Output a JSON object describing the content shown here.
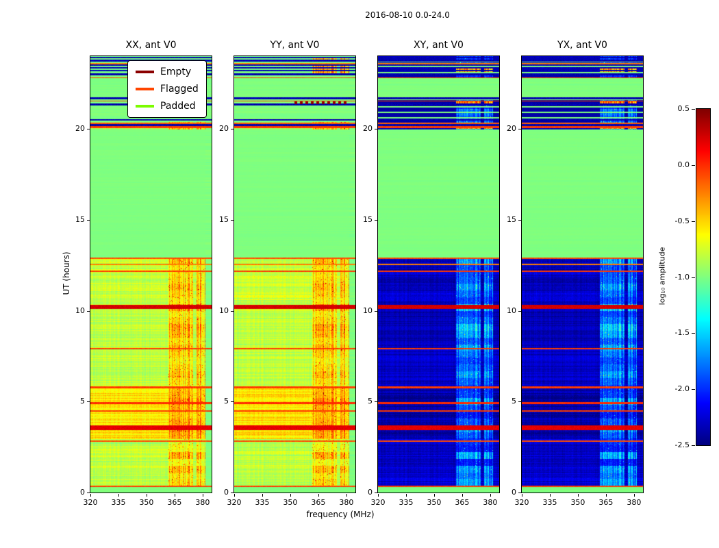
{
  "figure": {
    "title": "2016-08-10 0.0-24.0",
    "xlabel": "frequency (MHz)",
    "ylabel": "UT (hours)",
    "colorbar_label": "log₁₀ amplitude"
  },
  "chart_data": {
    "type": "heatmap",
    "colormap": "jet",
    "panels": [
      {
        "id": "xx",
        "title": "XX, ant V0",
        "kind": "auto"
      },
      {
        "id": "yy",
        "title": "YY, ant V0",
        "kind": "auto"
      },
      {
        "id": "xy",
        "title": "XY, ant V0",
        "kind": "cross"
      },
      {
        "id": "yx",
        "title": "YX, ant V0",
        "kind": "cross"
      }
    ],
    "x_range": [
      320,
      384.8
    ],
    "x_ticks": [
      320,
      335,
      350,
      365,
      380
    ],
    "y_range": [
      0,
      24
    ],
    "y_ticks": [
      0,
      5,
      10,
      15,
      20
    ],
    "colorbar": {
      "range": [
        -2.5,
        0.5
      ],
      "ticks": [
        {
          "label": "0.5",
          "value": 0.5
        },
        {
          "label": "0.0",
          "value": 0.0
        },
        {
          "label": "-0.5",
          "value": -0.5
        },
        {
          "label": "-1.0",
          "value": -1.0
        },
        {
          "label": "-1.5",
          "value": -1.5
        },
        {
          "label": "-2.0",
          "value": -2.0
        },
        {
          "label": "-2.5",
          "value": -2.5
        }
      ]
    },
    "legend": [
      {
        "label": "Empty",
        "color": "#8b0000"
      },
      {
        "label": "Flagged",
        "color": "#ff4500"
      },
      {
        "label": "Padded",
        "color": "#7cfc00"
      }
    ],
    "background_value": -1.0,
    "rfi": {
      "f0": 361.8,
      "f1": 381.4,
      "gap0": 374.9,
      "gap1": 376.9
    },
    "regions": [
      {
        "y0": 0.0,
        "y1": 0.32,
        "auto": -1.0,
        "cross": -1.0,
        "noise": 0.02
      },
      {
        "y0": 0.32,
        "y1": 1.05,
        "auto": -0.85,
        "cross": -2.25,
        "noise": 0.1,
        "rfi_auto": -0.45,
        "rfi_cross": -1.55,
        "rfi_noise": 0.3
      },
      {
        "y0": 1.05,
        "y1": 2.62,
        "auto": -0.8,
        "cross": -2.3,
        "noise": 0.12,
        "rfi_auto": -0.3,
        "rfi_cross": -1.5,
        "rfi_noise": 0.38
      },
      {
        "y0": 2.62,
        "y1": 2.95,
        "auto": -0.88,
        "cross": -2.2,
        "noise": 0.08,
        "rfi_auto": -0.5,
        "rfi_cross": -1.6,
        "rfi_noise": 0.3
      },
      {
        "y0": 2.95,
        "y1": 5.75,
        "auto": -0.55,
        "cross": -2.4,
        "noise": 0.13,
        "rfi_auto": -0.2,
        "rfi_cross": -1.45,
        "rfi_noise": 0.42
      },
      {
        "y0": 5.75,
        "y1": 7.9,
        "auto": -0.82,
        "cross": -2.3,
        "noise": 0.1,
        "rfi_auto": -0.35,
        "rfi_cross": -1.55,
        "rfi_noise": 0.38
      },
      {
        "y0": 7.9,
        "y1": 10.15,
        "auto": -0.82,
        "cross": -2.35,
        "noise": 0.1,
        "rfi_auto": -0.33,
        "rfi_cross": -1.5,
        "rfi_noise": 0.38
      },
      {
        "y0": 10.15,
        "y1": 12.9,
        "auto": -0.78,
        "cross": -2.3,
        "noise": 0.12,
        "rfi_auto": -0.3,
        "rfi_cross": -1.5,
        "rfi_noise": 0.42
      },
      {
        "y0": 12.9,
        "y1": 19.95,
        "auto": -1.0,
        "cross": -1.0,
        "noise": 0.015
      },
      {
        "y0": 19.95,
        "y1": 20.4,
        "auto": -0.9,
        "cross": -2.3,
        "noise": 0.07,
        "rfi_auto": -0.35,
        "rfi_cross": -1.5,
        "rfi_noise": 0.38
      },
      {
        "y0": 20.4,
        "y1": 21.6,
        "auto": -1.0,
        "cross": -2.4,
        "noise": 0.04,
        "rfi_cross": -1.6,
        "rfi_noise": 0.3
      },
      {
        "y0": 21.6,
        "y1": 22.85,
        "auto": -1.0,
        "cross": -1.0,
        "noise": 0.02
      },
      {
        "y0": 22.85,
        "y1": 24.0,
        "auto": -1.0,
        "cross": -2.35,
        "noise": 0.04,
        "rfi_cross": -1.55,
        "rfi_noise": 0.3
      }
    ],
    "flagged_lines": [
      {
        "y": 0.34,
        "h": 0.1,
        "v": -0.05
      },
      {
        "y": 2.84,
        "h": 0.08,
        "v": -0.1
      },
      {
        "y": 3.56,
        "h": 0.3,
        "v": 0.2
      },
      {
        "y": 4.48,
        "h": 0.09,
        "v": -0.05
      },
      {
        "y": 4.92,
        "h": 0.1,
        "v": 0.0
      },
      {
        "y": 5.78,
        "h": 0.09,
        "v": -0.05
      },
      {
        "y": 7.92,
        "h": 0.09,
        "v": -0.05
      },
      {
        "y": 10.2,
        "h": 0.24,
        "v": 0.25
      },
      {
        "y": 12.18,
        "h": 0.08,
        "v": -0.05
      },
      {
        "y": 12.55,
        "h": 0.05,
        "v": -0.25
      },
      {
        "y": 12.88,
        "h": 0.08,
        "v": -0.1
      },
      {
        "y": 20.1,
        "h": 0.08,
        "v": -0.05
      },
      {
        "y": 20.3,
        "h": 0.06,
        "v": -0.15
      },
      {
        "y": 21.53,
        "h": 0.06,
        "v": -0.05
      },
      {
        "y": 22.82,
        "h": 0.06,
        "v": -0.1
      },
      {
        "y": 23.58,
        "h": 0.05,
        "v": -0.25
      }
    ],
    "empty_lines": [
      {
        "y": 21.44,
        "h": 0.12,
        "f0": 352,
        "f1": 381.5,
        "v": 0.45,
        "panels": [
          "yy"
        ]
      }
    ],
    "blue_lines": [
      23.92,
      23.75,
      23.5,
      23.35,
      23.2,
      23.0,
      21.68,
      21.35,
      20.5,
      20.22
    ],
    "green_lines": [
      23.7,
      23.45,
      23.1,
      21.2,
      20.9,
      20.6
    ],
    "rfi_patches": [
      {
        "y0": 23.05,
        "y1": 23.5,
        "value": -0.35,
        "panels": [
          "yy",
          "xy",
          "yx"
        ]
      },
      {
        "y0": 23.72,
        "y1": 23.95,
        "value": -0.5,
        "panels": [
          "yy"
        ]
      },
      {
        "y0": 21.3,
        "y1": 21.56,
        "value": -0.22,
        "panels": [
          "xy",
          "yx"
        ]
      },
      {
        "y0": 20.0,
        "y1": 20.33,
        "value": -0.3,
        "panels": [
          "xy",
          "yx"
        ]
      }
    ]
  }
}
